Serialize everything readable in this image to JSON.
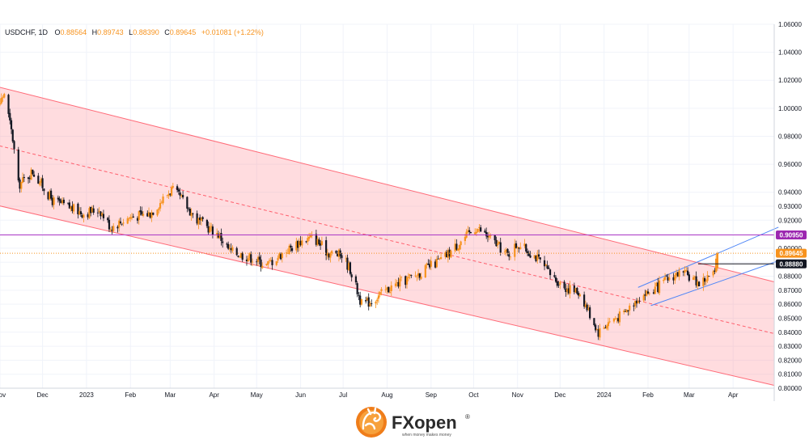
{
  "colors": {
    "up": "#f7931e",
    "down": "#131722",
    "channel_fill": "rgba(255,140,150,0.30)",
    "channel_line": "#ff6b78",
    "mid_line": "#ff5f6d",
    "resistance_line": "#b13cc8",
    "support_badge": "#131722",
    "resistance_badge": "#9c27b0",
    "price_badge": "#f7931e",
    "small_channel": "#4f86f7"
  },
  "header": {
    "symbol": "USDCHF, 1D",
    "open_label": "O",
    "open": "0.88564",
    "high_label": "H",
    "high": "0.89743",
    "low_label": "L",
    "low": "0.88390",
    "close_label": "C",
    "close": "0.89645",
    "change": "+0.01081 (+1.22%)"
  },
  "price_badges": {
    "resistance": "0.90950",
    "current": "0.89645",
    "support": "0.88880"
  },
  "brand": {
    "name": "FXopen",
    "registered": "®",
    "slogan": "when money makes money",
    "logo_icon": "dragon-icon"
  },
  "chart_data": {
    "type": "candlestick",
    "symbol": "USDCHF",
    "timeframe": "1D",
    "ylim": [
      0.8,
      1.06
    ],
    "x_date_range": [
      "2022-11-01",
      "2024-04-30"
    ],
    "x_tick_labels": [
      {
        "label": "Nov",
        "date": "2022-11-01"
      },
      {
        "label": "Dec",
        "date": "2022-12-01"
      },
      {
        "label": "2023",
        "date": "2023-01-01"
      },
      {
        "label": "Feb",
        "date": "2023-02-01"
      },
      {
        "label": "Mar",
        "date": "2023-03-01"
      },
      {
        "label": "Apr",
        "date": "2023-04-01"
      },
      {
        "label": "May",
        "date": "2023-05-01"
      },
      {
        "label": "Jun",
        "date": "2023-06-01"
      },
      {
        "label": "Jul",
        "date": "2023-07-01"
      },
      {
        "label": "Aug",
        "date": "2023-08-01"
      },
      {
        "label": "Sep",
        "date": "2023-09-01"
      },
      {
        "label": "Oct",
        "date": "2023-10-01"
      },
      {
        "label": "Nov",
        "date": "2023-11-01"
      },
      {
        "label": "Dec",
        "date": "2023-12-01"
      },
      {
        "label": "2024",
        "date": "2024-01-01"
      },
      {
        "label": "Feb",
        "date": "2024-02-01"
      },
      {
        "label": "Mar",
        "date": "2024-03-01"
      },
      {
        "label": "Apr",
        "date": "2024-04-01"
      }
    ],
    "y_tick_labels": [
      "1.06000",
      "1.04000",
      "1.02000",
      "1.00000",
      "0.98000",
      "0.96000",
      "0.94000",
      "0.93000",
      "0.92000",
      "0.91000",
      "0.90000",
      "0.89000",
      "0.88000",
      "0.87000",
      "0.86000",
      "0.85000",
      "0.84000",
      "0.83000",
      "0.82000",
      "0.81000",
      "0.80000"
    ],
    "price_path": [
      [
        "2022-10-20",
        1.0
      ],
      [
        "2022-10-28",
        0.995
      ],
      [
        "2022-11-04",
        1.011
      ],
      [
        "2022-11-10",
        0.978
      ],
      [
        "2022-11-14",
        0.945
      ],
      [
        "2022-11-24",
        0.955
      ],
      [
        "2022-12-08",
        0.934
      ],
      [
        "2022-12-30",
        0.925
      ],
      [
        "2023-01-10",
        0.928
      ],
      [
        "2023-01-18",
        0.915
      ],
      [
        "2023-01-31",
        0.922
      ],
      [
        "2023-02-15",
        0.925
      ],
      [
        "2023-03-02",
        0.942
      ],
      [
        "2023-03-09",
        0.935
      ],
      [
        "2023-03-20",
        0.92
      ],
      [
        "2023-04-04",
        0.91
      ],
      [
        "2023-04-12",
        0.898
      ],
      [
        "2023-04-28",
        0.893
      ],
      [
        "2023-05-08",
        0.888
      ],
      [
        "2023-05-20",
        0.897
      ],
      [
        "2023-06-01",
        0.905
      ],
      [
        "2023-06-10",
        0.908
      ],
      [
        "2023-06-20",
        0.897
      ],
      [
        "2023-06-30",
        0.895
      ],
      [
        "2023-07-06",
        0.885
      ],
      [
        "2023-07-14",
        0.86
      ],
      [
        "2023-07-20",
        0.862
      ],
      [
        "2023-08-05",
        0.873
      ],
      [
        "2023-08-20",
        0.88
      ],
      [
        "2023-09-10",
        0.893
      ],
      [
        "2023-09-22",
        0.905
      ],
      [
        "2023-10-03",
        0.915
      ],
      [
        "2023-10-15",
        0.905
      ],
      [
        "2023-10-25",
        0.895
      ],
      [
        "2023-11-01",
        0.903
      ],
      [
        "2023-11-13",
        0.895
      ],
      [
        "2023-11-25",
        0.88
      ],
      [
        "2023-12-05",
        0.872
      ],
      [
        "2023-12-15",
        0.868
      ],
      [
        "2023-12-28",
        0.84
      ],
      [
        "2024-01-05",
        0.848
      ],
      [
        "2024-01-15",
        0.853
      ],
      [
        "2024-01-25",
        0.865
      ],
      [
        "2024-02-05",
        0.87
      ],
      [
        "2024-02-15",
        0.878
      ],
      [
        "2024-02-22",
        0.882
      ],
      [
        "2024-03-01",
        0.88
      ],
      [
        "2024-03-08",
        0.875
      ],
      [
        "2024-03-14",
        0.879
      ],
      [
        "2024-03-19",
        0.882
      ],
      [
        "2024-03-21",
        0.896
      ]
    ],
    "falling_channel": {
      "upper": [
        [
          "2022-10-20",
          1.018
        ],
        [
          "2024-04-30",
          0.876
        ]
      ],
      "lower": [
        [
          "2022-10-20",
          0.933
        ],
        [
          "2024-04-30",
          0.802
        ]
      ],
      "mid": [
        [
          "2022-10-20",
          0.976
        ],
        [
          "2024-04-30",
          0.839
        ]
      ]
    },
    "rising_channel": {
      "upper": [
        [
          "2024-01-25",
          0.872
        ],
        [
          "2024-05-03",
          0.915
        ]
      ],
      "lower": [
        [
          "2024-02-03",
          0.859
        ],
        [
          "2024-05-03",
          0.891
        ]
      ]
    },
    "horizontal_levels": [
      {
        "price": 0.9095,
        "style": "solid",
        "name": "resistance"
      },
      {
        "price": 0.8888,
        "style": "solid",
        "name": "support"
      },
      {
        "price": 0.89645,
        "style": "dotted",
        "name": "current"
      }
    ],
    "grid": true
  }
}
